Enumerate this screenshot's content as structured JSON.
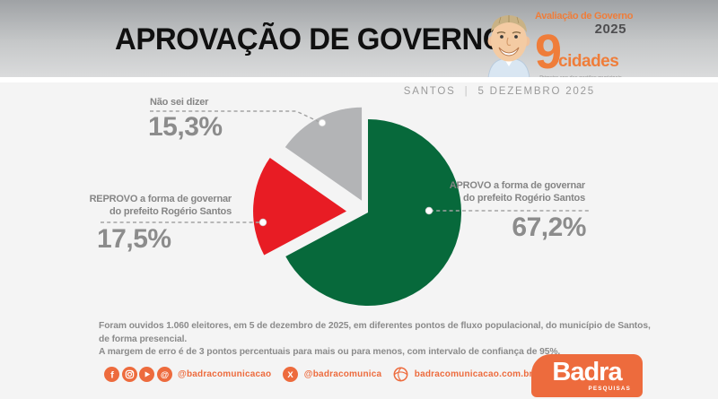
{
  "header": {
    "title": "APROVAÇÃO DE GOVERNO",
    "badge": {
      "line1": "Avaliação de Governo",
      "year": "2025",
      "big_number": "9",
      "cities_word": "cidades",
      "tagline": "Primeiro ano das gestões municipais"
    }
  },
  "subheader": {
    "city": "SANTOS",
    "separator": "|",
    "date": "5 DEZEMBRO 2025"
  },
  "chart_data": {
    "type": "pie",
    "title": "APROVAÇÃO DE GOVERNO",
    "units": "percent",
    "start_angle_deg": 0,
    "direction": "clockwise",
    "explode": [
      0,
      24,
      15
    ],
    "slices": [
      {
        "label": "APROVO a forma de governar do prefeito Rogério Santos",
        "value": 67.2,
        "display": "67,2%",
        "color": "#07693B"
      },
      {
        "label": "REPROVO a forma de governar do prefeito Rogério Santos",
        "value": 17.5,
        "display": "17,5%",
        "color": "#E81C24"
      },
      {
        "label": "Não sei dizer",
        "value": 15.3,
        "display": "15,3%",
        "color": "#B3B4B6"
      }
    ]
  },
  "labels": {
    "aprovo": {
      "line1": "APROVO a forma de governar",
      "line2": "do prefeito Rogério Santos"
    },
    "reprovo": {
      "line1": "REPROVO a forma de governar",
      "line2": "do prefeito Rogério Santos"
    },
    "nao_sei": {
      "line1": "Não sei dizer"
    }
  },
  "footnote": {
    "line1": "Foram ouvidos 1.060 eleitores, em 5 de dezembro de 2025, em diferentes pontos de fluxo populacional, do município de Santos, de forma presencial.",
    "line2": "A margem de erro é de 3 pontos percentuais para mais ou para menos, com intervalo de confiança de 95%."
  },
  "footer": {
    "social_group1": {
      "icons": [
        "facebook-icon",
        "instagram-icon",
        "youtube-icon",
        "threads-icon"
      ],
      "handle": "@badracomunicacao"
    },
    "social_group2": {
      "icons": [
        "x-icon"
      ],
      "handle": "@badracomunica"
    },
    "social_group3": {
      "icons": [
        "globe-icon"
      ],
      "handle": "badracomunicacao.com.br"
    },
    "brand": "Badra",
    "brand_sub": "PESQUISAS"
  },
  "colors": {
    "orange": "#ED6B3D",
    "badge_orange": "#EF7D3A",
    "approve_green": "#07693B",
    "disapprove_red": "#E81C24",
    "neutral_gray": "#B3B4B6",
    "label_gray": "#8A8A8A",
    "header_gradient_top": "#9FA2A5",
    "header_gradient_bottom": "#DADBDC",
    "background": "#F4F4F4"
  }
}
